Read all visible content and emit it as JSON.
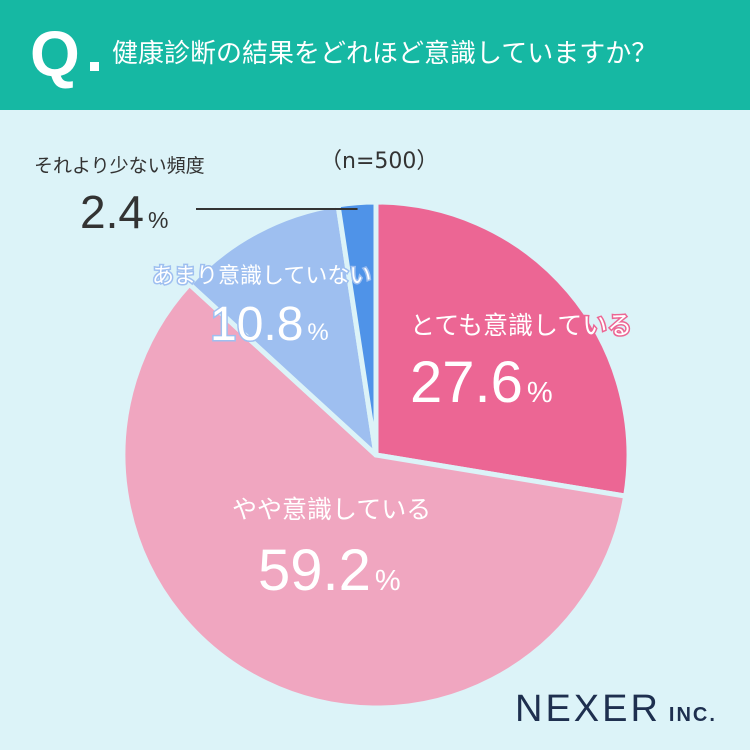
{
  "header": {
    "q_mark": "Q",
    "question": "健康診断の結果をどれほど意識していますか？"
  },
  "sample_size": "（n=500）",
  "brand": {
    "name": "NEXER",
    "suffix": "INC."
  },
  "colors": {
    "header_bg": "#16b8a3",
    "page_bg": "#dcf3f8",
    "slice_very": "#ec6694",
    "slice_somewhat": "#f0a6c0",
    "slice_not_much": "#9ebff0",
    "slice_less": "#4f93e8"
  },
  "chart_data": {
    "type": "pie",
    "start": "top, clockwise",
    "slices": [
      {
        "label": "とても意識している",
        "value": 27.6,
        "value_text": "27.6",
        "color": "#ec6694",
        "label_color": "#ffffff"
      },
      {
        "label": "やや意識している",
        "value": 59.2,
        "value_text": "59.2",
        "color": "#f0a6c0",
        "label_color": "#ffffff"
      },
      {
        "label": "あまり意識していない",
        "value": 10.8,
        "value_text": "10.8",
        "color": "#9ebff0",
        "label_color": "#ffffff"
      },
      {
        "label": "それより少ない頻度",
        "value": 2.4,
        "value_text": "2.4",
        "color": "#4f93e8",
        "label_color": "#333333"
      }
    ],
    "unit": "%"
  }
}
